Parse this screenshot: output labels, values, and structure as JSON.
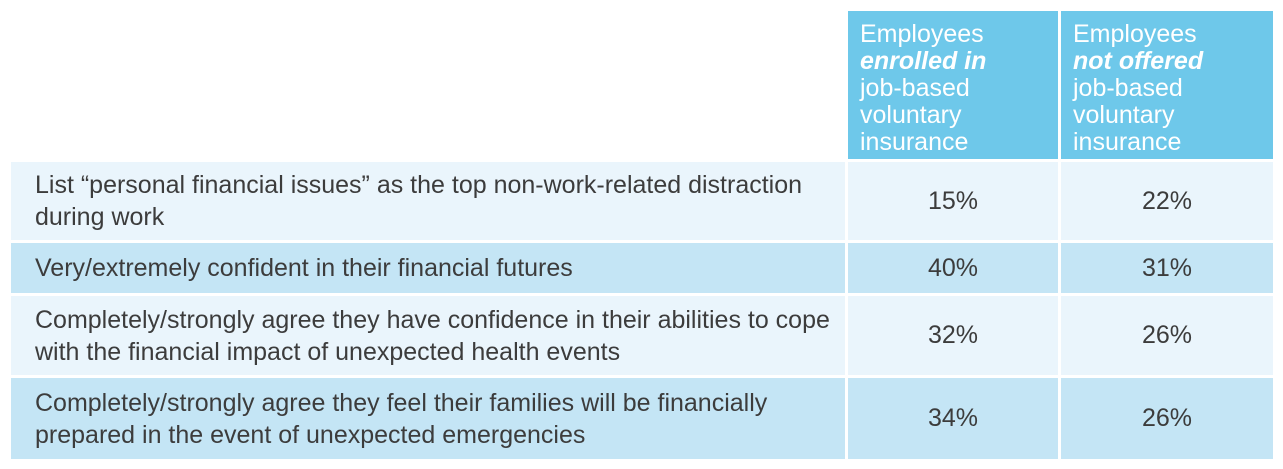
{
  "chart_data": {
    "type": "table",
    "columns": [
      {
        "pre": "Employees",
        "emphasis": "enrolled in",
        "post": [
          "job-based",
          "voluntary",
          "insurance"
        ]
      },
      {
        "pre": "Employees",
        "emphasis": "not offered",
        "post": [
          "job-based",
          "voluntary",
          "insurance"
        ]
      }
    ],
    "rows": [
      {
        "label": "List “personal financial issues” as the top non-work-related distraction during work",
        "values": [
          "15%",
          "22%"
        ]
      },
      {
        "label": "Very/extremely confident in their financial futures",
        "values": [
          "40%",
          "31%"
        ]
      },
      {
        "label": "Completely/strongly agree they have confidence in their abilities to cope with the financial impact of unexpected health events",
        "values": [
          "32%",
          "26%"
        ]
      },
      {
        "label": "Completely/strongly agree they feel their families will be financially prepared in the event of unexpected emergencies",
        "values": [
          "34%",
          "26%"
        ]
      }
    ],
    "colors": {
      "header": "#6ec8ea",
      "row_light": "#eaf5fc",
      "row_dark": "#c4e5f5",
      "text": "#3c3c3c"
    }
  }
}
